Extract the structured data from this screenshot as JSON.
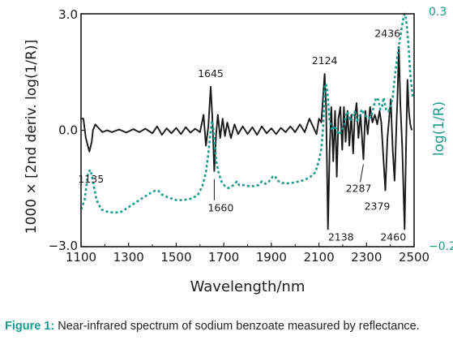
{
  "chart_data": {
    "type": "line",
    "xlabel": "Wavelength/nm",
    "ylabel_left": "1000 × [2nd deriv. log(1/R)]",
    "ylabel_right": "log(1/R)",
    "xlim": [
      1100,
      2500
    ],
    "ylim_left": [
      -3.0,
      3.0
    ],
    "ylim_right": [
      -0.2,
      0.3
    ],
    "x_ticks": [
      "1100",
      "1300",
      "1500",
      "1700",
      "1900",
      "2100",
      "2300",
      "2500"
    ],
    "y_ticks_left": [
      "3.0",
      "0.0",
      "−3.0"
    ],
    "y_ticks_right": [
      "0.3",
      "−0.2"
    ],
    "colors": {
      "second_derivative": "#1a1a1a",
      "absorbance": "#1a9a8e",
      "right_axis_text": "#1a9a8e"
    },
    "series": [
      {
        "role": "second_derivative",
        "axis": "left",
        "style": "solid",
        "points": [
          [
            1100,
            0.3
          ],
          [
            1110,
            0.3
          ],
          [
            1120,
            -0.2
          ],
          [
            1135,
            -0.55
          ],
          [
            1145,
            -0.3
          ],
          [
            1150,
            0.0
          ],
          [
            1160,
            0.15
          ],
          [
            1175,
            0.05
          ],
          [
            1190,
            -0.05
          ],
          [
            1210,
            0.0
          ],
          [
            1230,
            -0.05
          ],
          [
            1260,
            0.02
          ],
          [
            1290,
            -0.06
          ],
          [
            1320,
            0.03
          ],
          [
            1345,
            -0.05
          ],
          [
            1370,
            0.04
          ],
          [
            1400,
            -0.08
          ],
          [
            1420,
            0.1
          ],
          [
            1440,
            -0.12
          ],
          [
            1460,
            0.05
          ],
          [
            1480,
            -0.08
          ],
          [
            1500,
            0.06
          ],
          [
            1520,
            -0.1
          ],
          [
            1540,
            0.08
          ],
          [
            1560,
            -0.06
          ],
          [
            1580,
            0.04
          ],
          [
            1600,
            -0.05
          ],
          [
            1615,
            0.4
          ],
          [
            1625,
            -0.4
          ],
          [
            1635,
            0.1
          ],
          [
            1645,
            1.12
          ],
          [
            1652,
            0.3
          ],
          [
            1660,
            -1.05
          ],
          [
            1668,
            -0.1
          ],
          [
            1675,
            0.4
          ],
          [
            1685,
            -0.2
          ],
          [
            1695,
            0.3
          ],
          [
            1705,
            -0.15
          ],
          [
            1715,
            0.2
          ],
          [
            1730,
            -0.2
          ],
          [
            1745,
            0.15
          ],
          [
            1760,
            -0.1
          ],
          [
            1780,
            0.1
          ],
          [
            1800,
            -0.1
          ],
          [
            1820,
            0.08
          ],
          [
            1840,
            -0.12
          ],
          [
            1860,
            0.1
          ],
          [
            1880,
            -0.08
          ],
          [
            1900,
            0.05
          ],
          [
            1920,
            -0.1
          ],
          [
            1940,
            0.06
          ],
          [
            1960,
            -0.05
          ],
          [
            1980,
            0.1
          ],
          [
            2000,
            -0.05
          ],
          [
            2020,
            0.15
          ],
          [
            2040,
            -0.05
          ],
          [
            2060,
            0.3
          ],
          [
            2075,
            0.1
          ],
          [
            2090,
            -0.1
          ],
          [
            2100,
            0.3
          ],
          [
            2110,
            0.2
          ],
          [
            2124,
            1.45
          ],
          [
            2130,
            0.6
          ],
          [
            2138,
            -2.55
          ],
          [
            2145,
            -0.5
          ],
          [
            2152,
            0.6
          ],
          [
            2160,
            -0.8
          ],
          [
            2168,
            0.5
          ],
          [
            2175,
            -1.2
          ],
          [
            2182,
            0.3
          ],
          [
            2190,
            0.6
          ],
          [
            2198,
            -0.5
          ],
          [
            2205,
            0.6
          ],
          [
            2212,
            -0.3
          ],
          [
            2220,
            0.5
          ],
          [
            2228,
            -0.4
          ],
          [
            2236,
            0.4
          ],
          [
            2244,
            -0.6
          ],
          [
            2250,
            0.3
          ],
          [
            2258,
            0.7
          ],
          [
            2266,
            -0.2
          ],
          [
            2275,
            0.4
          ],
          [
            2287,
            -0.75
          ],
          [
            2295,
            0.5
          ],
          [
            2305,
            -0.1
          ],
          [
            2315,
            0.6
          ],
          [
            2325,
            0.2
          ],
          [
            2335,
            0.4
          ],
          [
            2345,
            0.15
          ],
          [
            2355,
            0.5
          ],
          [
            2362,
            0.2
          ],
          [
            2370,
            -0.6
          ],
          [
            2379,
            -1.55
          ],
          [
            2388,
            -0.2
          ],
          [
            2395,
            0.3
          ],
          [
            2402,
            0.8
          ],
          [
            2410,
            -0.5
          ],
          [
            2418,
            -1.3
          ],
          [
            2426,
            0.2
          ],
          [
            2430,
            0.8
          ],
          [
            2436,
            2.15
          ],
          [
            2442,
            0.7
          ],
          [
            2450,
            -0.4
          ],
          [
            2460,
            -2.55
          ],
          [
            2466,
            -0.5
          ],
          [
            2472,
            1.3
          ],
          [
            2478,
            0.5
          ],
          [
            2484,
            0.15
          ],
          [
            2490,
            0.0
          ]
        ]
      },
      {
        "role": "absorbance",
        "axis": "right",
        "style": "dotted",
        "points": [
          [
            1100,
            -0.12
          ],
          [
            1115,
            -0.1
          ],
          [
            1130,
            -0.04
          ],
          [
            1140,
            -0.035
          ],
          [
            1150,
            -0.06
          ],
          [
            1165,
            -0.1
          ],
          [
            1185,
            -0.12
          ],
          [
            1210,
            -0.125
          ],
          [
            1240,
            -0.127
          ],
          [
            1270,
            -0.125
          ],
          [
            1300,
            -0.115
          ],
          [
            1330,
            -0.105
          ],
          [
            1360,
            -0.095
          ],
          [
            1385,
            -0.087
          ],
          [
            1410,
            -0.08
          ],
          [
            1425,
            -0.08
          ],
          [
            1440,
            -0.088
          ],
          [
            1470,
            -0.095
          ],
          [
            1500,
            -0.1
          ],
          [
            1530,
            -0.1
          ],
          [
            1560,
            -0.097
          ],
          [
            1590,
            -0.09
          ],
          [
            1610,
            -0.07
          ],
          [
            1625,
            -0.04
          ],
          [
            1635,
            0.0
          ],
          [
            1645,
            0.05
          ],
          [
            1650,
            0.07
          ],
          [
            1655,
            0.06
          ],
          [
            1660,
            0.03
          ],
          [
            1668,
            -0.015
          ],
          [
            1678,
            -0.04
          ],
          [
            1690,
            -0.06
          ],
          [
            1705,
            -0.07
          ],
          [
            1720,
            -0.074
          ],
          [
            1740,
            -0.068
          ],
          [
            1755,
            -0.06
          ],
          [
            1765,
            -0.068
          ],
          [
            1785,
            -0.068
          ],
          [
            1805,
            -0.07
          ],
          [
            1825,
            -0.07
          ],
          [
            1845,
            -0.068
          ],
          [
            1860,
            -0.06
          ],
          [
            1875,
            -0.065
          ],
          [
            1890,
            -0.06
          ],
          [
            1905,
            -0.05
          ],
          [
            1915,
            -0.048
          ],
          [
            1925,
            -0.058
          ],
          [
            1945,
            -0.063
          ],
          [
            1970,
            -0.064
          ],
          [
            2000,
            -0.062
          ],
          [
            2030,
            -0.058
          ],
          [
            2060,
            -0.052
          ],
          [
            2085,
            -0.04
          ],
          [
            2100,
            -0.015
          ],
          [
            2110,
            0.01
          ],
          [
            2118,
            0.06
          ],
          [
            2124,
            0.14
          ],
          [
            2130,
            0.15
          ],
          [
            2136,
            0.13
          ],
          [
            2145,
            0.07
          ],
          [
            2155,
            0.05
          ],
          [
            2165,
            0.06
          ],
          [
            2175,
            0.05
          ],
          [
            2185,
            0.04
          ],
          [
            2195,
            0.05
          ],
          [
            2205,
            0.06
          ],
          [
            2212,
            0.08
          ],
          [
            2220,
            0.09
          ],
          [
            2230,
            0.07
          ],
          [
            2240,
            0.08
          ],
          [
            2250,
            0.09
          ],
          [
            2260,
            0.07
          ],
          [
            2270,
            0.08
          ],
          [
            2280,
            0.095
          ],
          [
            2290,
            0.085
          ],
          [
            2300,
            0.08
          ],
          [
            2310,
            0.075
          ],
          [
            2320,
            0.08
          ],
          [
            2330,
            0.1
          ],
          [
            2340,
            0.12
          ],
          [
            2350,
            0.115
          ],
          [
            2358,
            0.095
          ],
          [
            2365,
            0.1
          ],
          [
            2372,
            0.12
          ],
          [
            2382,
            0.095
          ],
          [
            2392,
            0.09
          ],
          [
            2400,
            0.1
          ],
          [
            2410,
            0.12
          ],
          [
            2420,
            0.17
          ],
          [
            2430,
            0.21
          ],
          [
            2440,
            0.245
          ],
          [
            2448,
            0.27
          ],
          [
            2455,
            0.29
          ],
          [
            2460,
            0.3
          ],
          [
            2466,
            0.29
          ],
          [
            2472,
            0.26
          ],
          [
            2478,
            0.22
          ],
          [
            2484,
            0.17
          ],
          [
            2490,
            0.14
          ],
          [
            2495,
            0.12
          ]
        ]
      }
    ],
    "annotations": [
      {
        "label": "1135",
        "x": 1135,
        "y": -0.55
      },
      {
        "label": "1645",
        "x": 1645,
        "y": 1.12
      },
      {
        "label": "1660",
        "x": 1660,
        "y": -1.05
      },
      {
        "label": "2124",
        "x": 2124,
        "y": 1.45
      },
      {
        "label": "2138",
        "x": 2138,
        "y": -2.55
      },
      {
        "label": "2287",
        "x": 2287,
        "y": -0.75
      },
      {
        "label": "2379",
        "x": 2379,
        "y": -1.55
      },
      {
        "label": "2436",
        "x": 2436,
        "y": 2.15
      },
      {
        "label": "2460",
        "x": 2460,
        "y": -2.55
      }
    ]
  },
  "caption": {
    "figure_label": "Figure 1:",
    "text": " Near-infrared spectrum of sodium benzoate measured by reflectance."
  }
}
